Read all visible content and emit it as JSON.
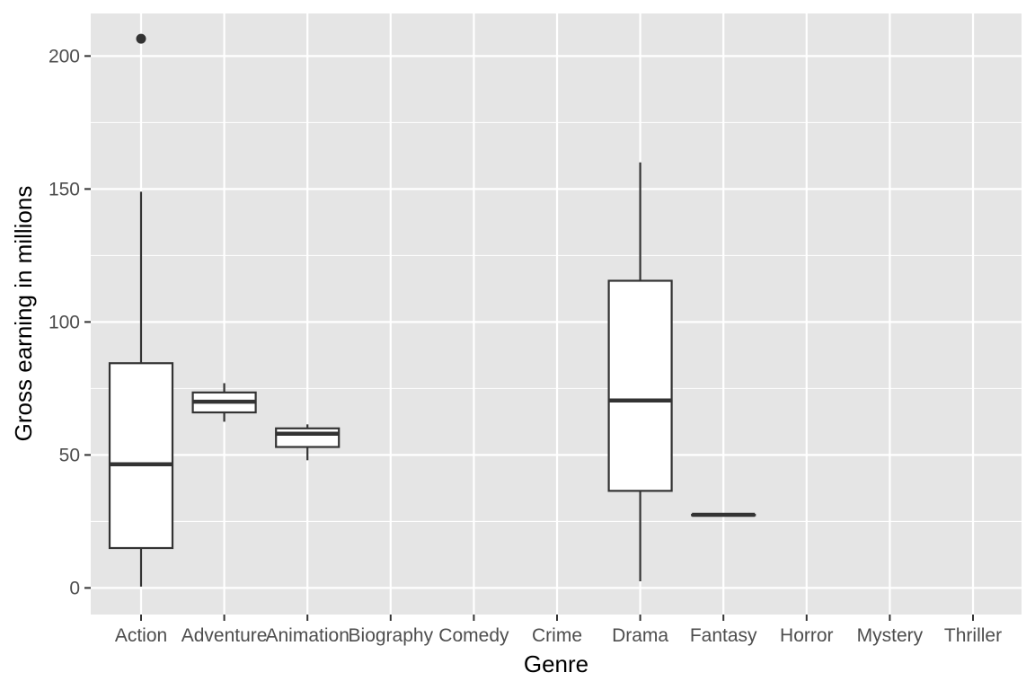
{
  "chart_data": {
    "type": "boxplot",
    "title": "",
    "xlabel": "Genre",
    "ylabel": "Gross earning in millions",
    "categories": [
      "Action",
      "Adventure",
      "Animation",
      "Biography",
      "Comedy",
      "Crime",
      "Drama",
      "Fantasy",
      "Horror",
      "Mystery",
      "Thriller"
    ],
    "boxes": [
      {
        "category": "Action",
        "whisker_low": 0.5,
        "q1": 15.0,
        "median": 46.5,
        "q3": 84.5,
        "whisker_high": 149.0,
        "outliers": [
          206.5
        ]
      },
      {
        "category": "Adventure",
        "whisker_low": 62.5,
        "q1": 66.0,
        "median": 70.0,
        "q3": 73.5,
        "whisker_high": 77.0,
        "outliers": []
      },
      {
        "category": "Animation",
        "whisker_low": 48.0,
        "q1": 53.0,
        "median": 58.0,
        "q3": 60.0,
        "whisker_high": 61.5,
        "outliers": []
      },
      {
        "category": "Drama",
        "whisker_low": 2.5,
        "q1": 36.5,
        "median": 70.5,
        "q3": 115.5,
        "whisker_high": 160.0,
        "outliers": []
      },
      {
        "category": "Fantasy",
        "whisker_low": 27.5,
        "q1": 27.5,
        "median": 27.5,
        "q3": 27.5,
        "whisker_high": 27.5,
        "outliers": []
      }
    ],
    "y_ticks": [
      0,
      50,
      100,
      150,
      200
    ],
    "ylim": [
      -10,
      216
    ],
    "grid": true,
    "legend": "none",
    "colors": {
      "panel_background": "#e5e5e5",
      "grid_line": "#ffffff",
      "box_fill": "#ffffff",
      "box_stroke": "#333333",
      "tick_label": "#4d4d4d",
      "axis_title": "#000000"
    }
  }
}
